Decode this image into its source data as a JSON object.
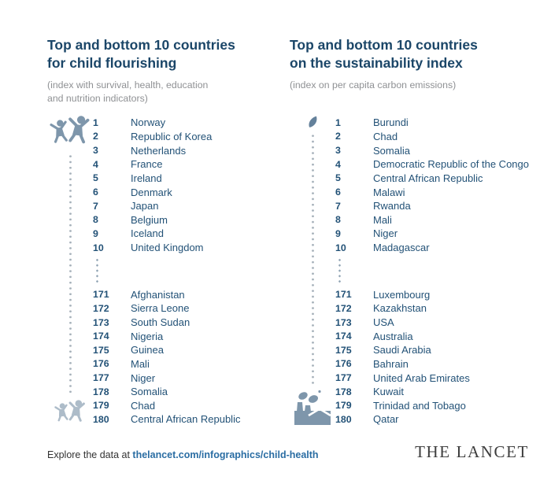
{
  "colors": {
    "title_navy": "#1B4668",
    "list_navy": "#235277",
    "subtitle_gray": "#8F9194",
    "icon_blue": "#7E96AB",
    "icon_blue_light": "#ADBCC9",
    "leaf_blue": "#64819B",
    "dot_color": "#A6B1BA",
    "gap_dot_color": "#8FA3B3",
    "link_blue": "#2A6DA3",
    "footer_text": "#323232",
    "lancet_logo": "#3D3D3D"
  },
  "icons": [
    "children-playing-icon",
    "children-playing-light-icon",
    "leaf-icon",
    "factory-emissions-icon"
  ],
  "panels": [
    {
      "title_line1": "Top and bottom 10 countries",
      "title_line2": "for child flourishing",
      "subtitle_line1": "(index with survival, health, education",
      "subtitle_line2": "and nutrition indicators)",
      "top10": [
        {
          "rank": "1",
          "country": "Norway"
        },
        {
          "rank": "2",
          "country": "Republic of Korea"
        },
        {
          "rank": "3",
          "country": "Netherlands"
        },
        {
          "rank": "4",
          "country": "France"
        },
        {
          "rank": "5",
          "country": "Ireland"
        },
        {
          "rank": "6",
          "country": "Denmark"
        },
        {
          "rank": "7",
          "country": "Japan"
        },
        {
          "rank": "8",
          "country": "Belgium"
        },
        {
          "rank": "9",
          "country": "Iceland"
        },
        {
          "rank": "10",
          "country": "United Kingdom"
        }
      ],
      "bottom10": [
        {
          "rank": "171",
          "country": "Afghanistan"
        },
        {
          "rank": "172",
          "country": "Sierra Leone"
        },
        {
          "rank": "173",
          "country": "South Sudan"
        },
        {
          "rank": "174",
          "country": "Nigeria"
        },
        {
          "rank": "175",
          "country": "Guinea"
        },
        {
          "rank": "176",
          "country": "Mali"
        },
        {
          "rank": "177",
          "country": "Niger"
        },
        {
          "rank": "178",
          "country": "Somalia"
        },
        {
          "rank": "179",
          "country": "Chad"
        },
        {
          "rank": "180",
          "country": "Central African Republic"
        }
      ]
    },
    {
      "title_line1": "Top and bottom 10 countries",
      "title_line2": "on the sustainability index",
      "subtitle_line1": "(index on per capita carbon emissions)",
      "subtitle_line2": "",
      "top10": [
        {
          "rank": "1",
          "country": "Burundi"
        },
        {
          "rank": "2",
          "country": "Chad"
        },
        {
          "rank": "3",
          "country": "Somalia"
        },
        {
          "rank": "4",
          "country": "Democratic Republic of the Congo"
        },
        {
          "rank": "5",
          "country": "Central African Republic"
        },
        {
          "rank": "6",
          "country": "Malawi"
        },
        {
          "rank": "7",
          "country": "Rwanda"
        },
        {
          "rank": "8",
          "country": "Mali"
        },
        {
          "rank": "9",
          "country": "Niger"
        },
        {
          "rank": "10",
          "country": "Madagascar"
        }
      ],
      "bottom10": [
        {
          "rank": "171",
          "country": "Luxembourg"
        },
        {
          "rank": "172",
          "country": "Kazakhstan"
        },
        {
          "rank": "173",
          "country": "USA"
        },
        {
          "rank": "174",
          "country": "Australia"
        },
        {
          "rank": "175",
          "country": "Saudi Arabia"
        },
        {
          "rank": "176",
          "country": "Bahrain"
        },
        {
          "rank": "177",
          "country": "United Arab Emirates"
        },
        {
          "rank": "178",
          "country": "Kuwait"
        },
        {
          "rank": "179",
          "country": "Trinidad and Tobago"
        },
        {
          "rank": "180",
          "country": "Qatar"
        }
      ]
    }
  ],
  "footer": {
    "explore_prefix": "Explore the data at ",
    "explore_link": "thelancet.com/infographics/child-health",
    "brand": "THE LANCET"
  }
}
